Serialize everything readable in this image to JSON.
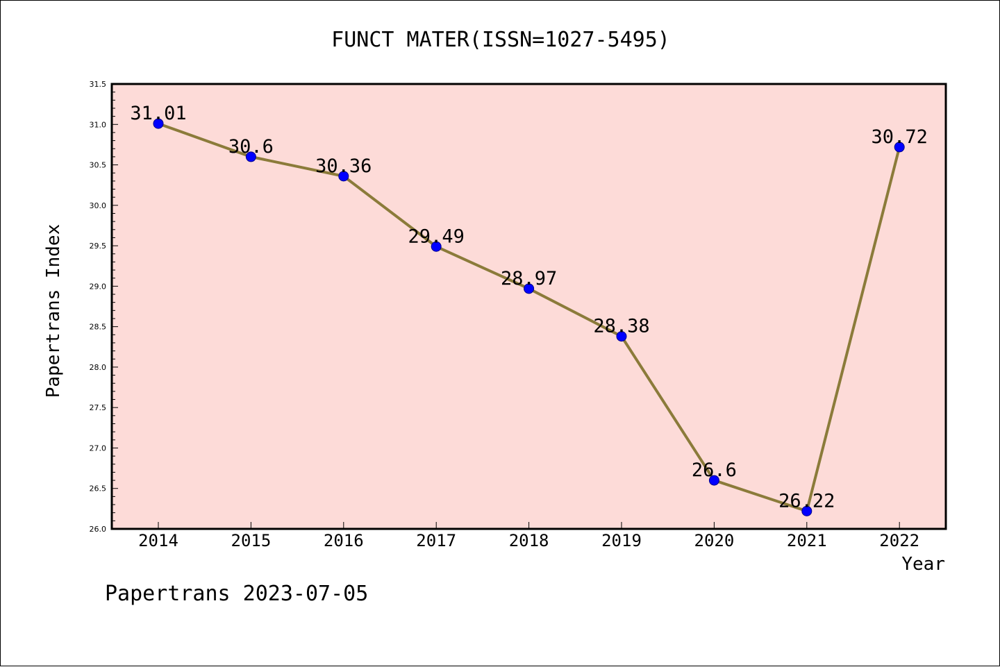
{
  "chart_data": {
    "type": "line",
    "title": "FUNCT MATER(ISSN=1027-5495)",
    "xlabel": "Year",
    "ylabel": "Papertrans Index",
    "x": [
      "2014",
      "2015",
      "2016",
      "2017",
      "2018",
      "2019",
      "2020",
      "2021",
      "2022"
    ],
    "series": [
      {
        "values": [
          31.01,
          30.6,
          30.36,
          29.49,
          28.97,
          28.38,
          26.6,
          26.22,
          30.72
        ],
        "labels": [
          "31.01",
          "30.6",
          "30.36",
          "29.49",
          "28.97",
          "28.38",
          "26.6",
          "26.22",
          "30.72"
        ]
      }
    ],
    "ylim": [
      26.0,
      31.5
    ],
    "yticks": [
      "26.0",
      "26.5",
      "27.0",
      "27.5",
      "28.0",
      "28.5",
      "29.0",
      "29.5",
      "30.0",
      "30.5",
      "31.0",
      "31.5"
    ],
    "grid": false,
    "colors": {
      "plot_background": "#fddbd8",
      "line": "#8b7b3a",
      "marker": "#0000ff"
    }
  },
  "footer": {
    "source": "Papertrans 2023-07-05"
  }
}
